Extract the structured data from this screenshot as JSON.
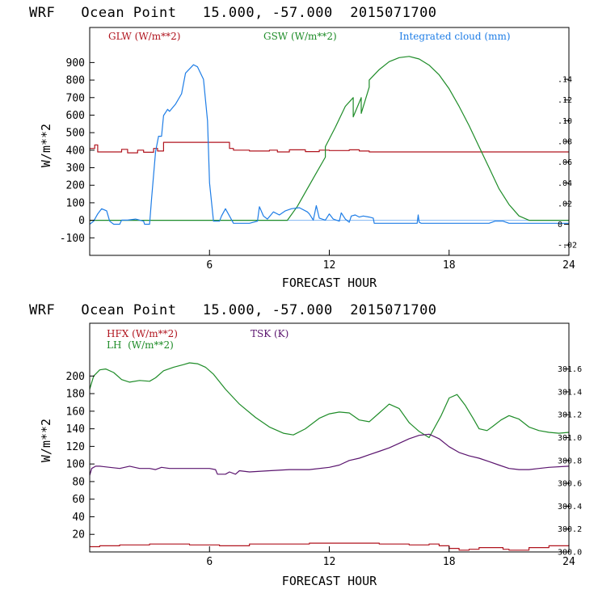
{
  "colors": {
    "red": "#b0141e",
    "green": "#1e8c28",
    "blue": "#1e7de6",
    "purple": "#5a146e",
    "axis": "#000000"
  },
  "chart_data": [
    {
      "type": "line",
      "title": "WRF   Ocean Point   15.000, -57.000  2015071700",
      "xlabel": "FORECAST HOUR",
      "ylabel": "W/m**2",
      "xlim": [
        0,
        24
      ],
      "ylim": [
        -200,
        1100
      ],
      "y2lim": [
        -0.03,
        0.19
      ],
      "xticks": [
        6,
        12,
        18,
        24
      ],
      "xtick_labels": [
        "6",
        "12",
        "18",
        "24"
      ],
      "yticks": [
        -100,
        0,
        100,
        200,
        300,
        400,
        500,
        600,
        700,
        800,
        900
      ],
      "ytick_labels": [
        "-100",
        "0",
        "100",
        "200",
        "300",
        "400",
        "500",
        "600",
        "700",
        "800",
        "900"
      ],
      "y2ticks": [
        -0.02,
        0,
        0.02,
        0.04,
        0.06,
        0.08,
        0.1,
        0.12,
        0.14
      ],
      "y2tick_labels": [
        "-.02",
        "0",
        ".02",
        ".04",
        ".06",
        ".08",
        ".10",
        ".12",
        ".14"
      ],
      "legend": [
        {
          "label": "GLW (W/m**2)",
          "color": "#b0141e"
        },
        {
          "label": "GSW (W/m**2)",
          "color": "#1e8c28"
        },
        {
          "label": "Integrated cloud (mm)",
          "color": "#1e7de6"
        }
      ],
      "series": [
        {
          "name": "GLW (W/m**2)",
          "color": "#b0141e",
          "axis": "left",
          "step": true,
          "x": [
            0,
            0.25,
            0.4,
            1.6,
            1.9,
            2.4,
            2.7,
            3.2,
            3.4,
            3.7,
            5.0,
            5.3,
            5.6,
            7.0,
            7.2,
            8.0,
            9.0,
            9.4,
            10.0,
            10.8,
            11.5,
            12.0,
            13.0,
            13.5,
            14.0,
            24.0
          ],
          "y": [
            410,
            430,
            390,
            405,
            385,
            400,
            388,
            410,
            395,
            445,
            445,
            445,
            445,
            410,
            400,
            395,
            400,
            390,
            402,
            392,
            400,
            398,
            402,
            395,
            390,
            390
          ]
        },
        {
          "name": "GSW (W/m**2)",
          "color": "#1e8c28",
          "axis": "left",
          "step": false,
          "x": [
            0,
            9.9,
            10.4,
            10.9,
            11.3,
            11.8,
            11.8,
            12.3,
            12.8,
            13.2,
            13.2,
            13.6,
            13.6,
            14.0,
            14.0,
            14.5,
            15.0,
            15.5,
            16.0,
            16.5,
            17.0,
            17.5,
            18.0,
            18.5,
            19.0,
            19.5,
            20.0,
            20.5,
            21.0,
            21.5,
            22.0,
            22.05,
            24.0
          ],
          "y": [
            0,
            0,
            80,
            180,
            260,
            360,
            420,
            530,
            650,
            700,
            590,
            700,
            610,
            760,
            800,
            860,
            905,
            928,
            935,
            920,
            885,
            830,
            750,
            650,
            540,
            420,
            300,
            180,
            90,
            25,
            0,
            0,
            0
          ]
        },
        {
          "name": "Integrated cloud (mm)",
          "color": "#1e7de6",
          "axis": "right",
          "step": false,
          "x": [
            0,
            0.2,
            0.4,
            0.6,
            0.85,
            1.0,
            1.2,
            1.5,
            1.6,
            1.9,
            2.3,
            2.7,
            2.75,
            3.0,
            3.1,
            3.3,
            3.45,
            3.6,
            3.7,
            3.9,
            4.0,
            4.3,
            4.6,
            4.8,
            5.0,
            5.2,
            5.4,
            5.7,
            5.9,
            6.0,
            6.2,
            6.5,
            6.6,
            6.8,
            7.0,
            7.2,
            7.5,
            8.0,
            8.4,
            8.5,
            8.7,
            8.9,
            9.2,
            9.5,
            9.8,
            10.1,
            10.5,
            10.9,
            11.0,
            11.2,
            11.35,
            11.5,
            11.8,
            12.0,
            12.2,
            12.5,
            12.6,
            12.8,
            13.0,
            13.1,
            13.3,
            13.5,
            13.7,
            14.0,
            14.2,
            14.25,
            14.5,
            15.0,
            15.5,
            16.0,
            16.4,
            16.45,
            16.5,
            16.6,
            17.0,
            18.0,
            19.0,
            20.0,
            20.3,
            20.7,
            21.0,
            22.0,
            24.0
          ],
          "y": [
            0,
            0.003,
            0.01,
            0.015,
            0.013,
            0.003,
            0,
            0,
            0.004,
            0.004,
            0.005,
            0.003,
            0,
            0,
            0.025,
            0.07,
            0.085,
            0.085,
            0.105,
            0.111,
            0.109,
            0.116,
            0.126,
            0.146,
            0.15,
            0.154,
            0.152,
            0.14,
            0.1,
            0.04,
            0.003,
            0.003,
            0.008,
            0.015,
            0.008,
            0.001,
            0.001,
            0.001,
            0.003,
            0.017,
            0.008,
            0.005,
            0.012,
            0.009,
            0.013,
            0.015,
            0.016,
            0.012,
            0.01,
            0.004,
            0.018,
            0.006,
            0.004,
            0.01,
            0.005,
            0.003,
            0.011,
            0.005,
            0.002,
            0.008,
            0.009,
            0.007,
            0.008,
            0.007,
            0.006,
            0.001,
            0.001,
            0.001,
            0.001,
            0.001,
            0.001,
            0.009,
            0.002,
            0.001,
            0.001,
            0.001,
            0.001,
            0.001,
            0.003,
            0.003,
            0.001,
            0.001,
            0.001
          ]
        }
      ]
    },
    {
      "type": "line",
      "title": "WRF   Ocean Point   15.000, -57.000  2015071700",
      "xlabel": "FORECAST HOUR",
      "ylabel": "W/m**2",
      "xlim": [
        0,
        24
      ],
      "ylim": [
        0,
        260
      ],
      "y2lim": [
        300.0,
        302.0
      ],
      "xticks": [
        6,
        12,
        18,
        24
      ],
      "xtick_labels": [
        "6",
        "12",
        "18",
        "24"
      ],
      "yticks": [
        20,
        40,
        60,
        80,
        100,
        120,
        140,
        160,
        180,
        200
      ],
      "ytick_labels": [
        "20",
        "40",
        "60",
        "80",
        "100",
        "120",
        "140",
        "160",
        "180",
        "200"
      ],
      "y2ticks": [
        300.0,
        300.2,
        300.4,
        300.6,
        300.8,
        301.0,
        301.2,
        301.4,
        301.6
      ],
      "y2tick_labels": [
        "300.0",
        "300.2",
        "300.4",
        "300.6",
        "300.8",
        "301.0",
        "301.2",
        "301.4",
        "301.6"
      ],
      "legend": [
        {
          "label": "HFX (W/m**2)",
          "color": "#b0141e"
        },
        {
          "label": "LH  (W/m**2)",
          "color": "#1e8c28"
        },
        {
          "label": "TSK (K)",
          "color": "#5a146e"
        }
      ],
      "series": [
        {
          "name": "HFX (W/m**2)",
          "color": "#b0141e",
          "axis": "left",
          "step": true,
          "x": [
            0,
            0.5,
            1.5,
            3.0,
            5.0,
            6.5,
            8.0,
            10.0,
            11.0,
            12.0,
            14.5,
            16.0,
            17.0,
            17.5,
            18.0,
            18.5,
            19.0,
            19.5,
            20.0,
            20.7,
            21.0,
            22.0,
            23.0,
            24.0
          ],
          "y": [
            6,
            7,
            8,
            9,
            8,
            7,
            9,
            9,
            10,
            10,
            9,
            8,
            9,
            7,
            4,
            2,
            3,
            5,
            5,
            3,
            2,
            5,
            7,
            8
          ]
        },
        {
          "name": "LH  (W/m**2)",
          "color": "#1e8c28",
          "axis": "left",
          "step": false,
          "x": [
            0,
            0.2,
            0.5,
            0.8,
            1.2,
            1.6,
            2.0,
            2.5,
            3.0,
            3.3,
            3.7,
            4.2,
            4.7,
            5.0,
            5.4,
            5.8,
            6.2,
            6.8,
            7.5,
            8.3,
            9.0,
            9.7,
            10.2,
            10.8,
            11.5,
            12.0,
            12.5,
            13.0,
            13.5,
            14.0,
            14.5,
            15.0,
            15.5,
            16.0,
            16.5,
            17.0,
            17.6,
            18.0,
            18.4,
            18.8,
            19.2,
            19.5,
            19.9,
            20.2,
            20.6,
            21.0,
            21.5,
            22.0,
            22.5,
            23.0,
            23.5,
            24.0
          ],
          "y": [
            185,
            200,
            207,
            208,
            204,
            196,
            193,
            195,
            194,
            198,
            206,
            210,
            213,
            215,
            214,
            210,
            202,
            185,
            168,
            153,
            142,
            135,
            133,
            140,
            152,
            157,
            159,
            158,
            150,
            148,
            158,
            168,
            163,
            147,
            137,
            130,
            155,
            175,
            179,
            167,
            152,
            140,
            138,
            143,
            150,
            155,
            151,
            142,
            138,
            136,
            135,
            136
          ]
        },
        {
          "name": "TSK (K)",
          "color": "#5a146e",
          "axis": "right",
          "step": false,
          "x": [
            0,
            0.1,
            0.3,
            0.5,
            1.0,
            1.5,
            2.0,
            2.5,
            3.0,
            3.3,
            3.6,
            4.0,
            5.0,
            6.0,
            6.3,
            6.4,
            6.8,
            7.0,
            7.3,
            7.5,
            8.0,
            9.0,
            10.0,
            11.0,
            12.0,
            12.5,
            13.0,
            13.5,
            14.0,
            14.5,
            15.0,
            15.5,
            16.0,
            16.5,
            17.0,
            17.5,
            18.0,
            18.5,
            19.0,
            19.5,
            20.0,
            20.5,
            21.0,
            21.5,
            22.0,
            22.5,
            23.0,
            24.0
          ],
          "y": [
            300.67,
            300.73,
            300.75,
            300.75,
            300.74,
            300.73,
            300.75,
            300.73,
            300.73,
            300.72,
            300.74,
            300.73,
            300.73,
            300.73,
            300.72,
            300.68,
            300.68,
            300.7,
            300.68,
            300.71,
            300.7,
            300.71,
            300.72,
            300.72,
            300.74,
            300.76,
            300.8,
            300.82,
            300.85,
            300.88,
            300.91,
            300.95,
            300.99,
            301.02,
            301.03,
            300.99,
            300.92,
            300.87,
            300.84,
            300.82,
            300.79,
            300.76,
            300.73,
            300.72,
            300.72,
            300.73,
            300.74,
            300.75
          ]
        }
      ]
    }
  ]
}
